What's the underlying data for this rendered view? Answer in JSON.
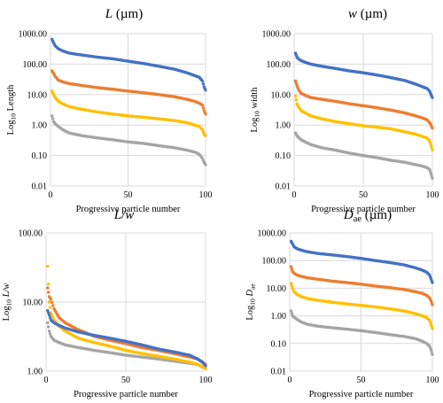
{
  "colors": {
    "series1": "#4472c4",
    "series2": "#ed7d31",
    "series3": "#ffc000",
    "series4": "#a5a5a5",
    "grid": "#d9d9d9",
    "text": "#000000"
  },
  "chart_data": [
    {
      "id": "length",
      "type": "scatter",
      "title_main": "L",
      "title_unit": " (µm)",
      "xlabel": "Progressive particle number",
      "ylabel_prefix": "Log",
      "ylabel_sub": "10",
      "ylabel_main": " Length",
      "yscale": "log",
      "ylim": [
        0.01,
        1000
      ],
      "yticks": [
        "0.01",
        "0.10",
        "1.00",
        "10.00",
        "100.00",
        "1000.00"
      ],
      "xlim": [
        0,
        100
      ],
      "xticks": [
        "0",
        "50",
        "100"
      ],
      "grid": true,
      "series": [
        {
          "x": [
            1,
            2,
            3,
            5,
            8,
            12,
            20,
            30,
            40,
            50,
            60,
            70,
            80,
            88,
            93,
            96,
            97,
            98,
            99,
            100
          ],
          "y": [
            650,
            500,
            400,
            320,
            270,
            230,
            200,
            170,
            150,
            125,
            105,
            85,
            68,
            52,
            42,
            37,
            32,
            28,
            18,
            14
          ]
        },
        {
          "x": [
            1,
            2,
            3,
            5,
            8,
            12,
            20,
            30,
            40,
            50,
            60,
            70,
            80,
            88,
            93,
            96,
            98,
            99,
            100
          ],
          "y": [
            60,
            50,
            40,
            30,
            26,
            23,
            20,
            17,
            15,
            13,
            11.5,
            10,
            8.5,
            7,
            6,
            5.2,
            4.5,
            3,
            2.3
          ]
        },
        {
          "x": [
            1,
            2,
            3,
            5,
            8,
            12,
            20,
            30,
            40,
            50,
            60,
            70,
            80,
            88,
            93,
            96,
            98,
            99,
            100
          ],
          "y": [
            13,
            10,
            8,
            6,
            5,
            4,
            3.3,
            2.7,
            2.3,
            2.0,
            1.8,
            1.6,
            1.4,
            1.2,
            1.0,
            0.9,
            0.7,
            0.5,
            0.45
          ]
        },
        {
          "x": [
            1,
            2,
            3,
            5,
            8,
            12,
            20,
            30,
            40,
            50,
            60,
            70,
            80,
            88,
            93,
            96,
            98,
            99,
            100
          ],
          "y": [
            2.0,
            1.3,
            1.1,
            0.9,
            0.7,
            0.55,
            0.45,
            0.38,
            0.33,
            0.28,
            0.25,
            0.21,
            0.18,
            0.15,
            0.13,
            0.11,
            0.08,
            0.06,
            0.05
          ]
        }
      ]
    },
    {
      "id": "width",
      "type": "scatter",
      "title_main": "w",
      "title_unit": " (µm)",
      "xlabel": "Progressive particle number",
      "ylabel_prefix": "Log",
      "ylabel_sub": "10",
      "ylabel_main": " width",
      "yscale": "log",
      "ylim": [
        0.01,
        1000
      ],
      "yticks": [
        "0.01",
        "0.10",
        "1.00",
        "10.00",
        "100.00",
        "1000.00"
      ],
      "xlim": [
        0,
        100
      ],
      "xticks": [
        "0",
        "50",
        "100"
      ],
      "grid": true,
      "series": [
        {
          "x": [
            1,
            2,
            3,
            5,
            8,
            12,
            20,
            30,
            40,
            50,
            60,
            70,
            80,
            88,
            93,
            96,
            98,
            99,
            100
          ],
          "y": [
            230,
            170,
            150,
            130,
            115,
            100,
            85,
            72,
            60,
            52,
            44,
            36,
            29,
            22,
            18,
            16,
            13,
            10,
            8
          ]
        },
        {
          "x": [
            1,
            2,
            3,
            5,
            8,
            12,
            20,
            30,
            40,
            50,
            60,
            70,
            80,
            88,
            93,
            96,
            98,
            99,
            100
          ],
          "y": [
            28,
            20,
            15,
            11,
            9.5,
            8,
            7,
            6,
            5,
            4.3,
            3.7,
            3.1,
            2.5,
            2.0,
            1.7,
            1.5,
            1.2,
            1.0,
            0.8
          ]
        },
        {
          "x": [
            1,
            2,
            3,
            5,
            8,
            12,
            20,
            30,
            40,
            50,
            60,
            70,
            80,
            88,
            93,
            96,
            98,
            99,
            100
          ],
          "y": [
            9,
            5,
            4,
            3,
            2.5,
            2.0,
            1.6,
            1.3,
            1.1,
            0.95,
            0.85,
            0.75,
            0.6,
            0.5,
            0.42,
            0.38,
            0.3,
            0.22,
            0.15
          ]
        },
        {
          "x": [
            1,
            2,
            3,
            5,
            8,
            12,
            20,
            30,
            40,
            50,
            60,
            70,
            80,
            88,
            93,
            96,
            98,
            99,
            100
          ],
          "y": [
            0.55,
            0.45,
            0.4,
            0.33,
            0.28,
            0.23,
            0.18,
            0.15,
            0.12,
            0.1,
            0.085,
            0.07,
            0.06,
            0.05,
            0.045,
            0.04,
            0.035,
            0.025,
            0.018
          ]
        }
      ]
    },
    {
      "id": "aspect",
      "type": "scatter",
      "title_main": "L/w",
      "title_unit": "",
      "xlabel": "Progressive particle number",
      "ylabel_prefix": "Log",
      "ylabel_sub": "10",
      "ylabel_main": " L/w",
      "yscale": "log",
      "ylim": [
        1,
        100
      ],
      "yticks": [
        "1.00",
        "10.00",
        "100.00"
      ],
      "xlim": [
        0,
        100
      ],
      "xticks": [
        "0",
        "50",
        "100"
      ],
      "grid": true,
      "series": [
        {
          "x": [
            1,
            2,
            3,
            5,
            8,
            12,
            20,
            30,
            40,
            50,
            60,
            70,
            80,
            90,
            95,
            98,
            100
          ],
          "y": [
            7.5,
            6.5,
            5.5,
            5.0,
            4.6,
            4.2,
            3.7,
            3.3,
            3.0,
            2.7,
            2.4,
            2.1,
            1.9,
            1.7,
            1.5,
            1.35,
            1.2
          ]
        },
        {
          "x": [
            1,
            2,
            3,
            5,
            8,
            12,
            20,
            30,
            40,
            50,
            60,
            70,
            80,
            90,
            95,
            98,
            100
          ],
          "y": [
            16,
            12,
            11,
            8,
            6,
            5,
            4,
            3.2,
            2.8,
            2.5,
            2.2,
            2.0,
            1.8,
            1.6,
            1.5,
            1.35,
            1.25
          ]
        },
        {
          "x": [
            1,
            2,
            3,
            5,
            8,
            12,
            20,
            30,
            40,
            50,
            60,
            70,
            80,
            90,
            95,
            98,
            100
          ],
          "y": [
            33,
            10,
            7,
            5.5,
            4.5,
            3.8,
            3.0,
            2.6,
            2.3,
            2.0,
            1.8,
            1.65,
            1.5,
            1.35,
            1.25,
            1.15,
            1.08
          ]
        },
        {
          "x": [
            1,
            2,
            3,
            5,
            8,
            12,
            20,
            30,
            40,
            50,
            60,
            70,
            80,
            90,
            95,
            98,
            100
          ],
          "y": [
            5,
            3.8,
            3.2,
            2.8,
            2.6,
            2.4,
            2.2,
            2.0,
            1.85,
            1.7,
            1.6,
            1.5,
            1.4,
            1.3,
            1.25,
            1.15,
            1.1
          ]
        }
      ]
    },
    {
      "id": "dae",
      "type": "scatter",
      "title_main": "D",
      "title_sub": "ae",
      "title_unit": " (µm)",
      "xlabel": "Progressive particle number",
      "ylabel_prefix": "Log",
      "ylabel_sub": "10",
      "ylabel_main": " D",
      "ylabel_main_sub": "ae",
      "yscale": "log",
      "ylim": [
        0.01,
        1000
      ],
      "yticks": [
        "0.01",
        "0.10",
        "1.00",
        "10.00",
        "100.00",
        "1000.00"
      ],
      "xlim": [
        0,
        100
      ],
      "xticks": [
        "0",
        "50",
        "100"
      ],
      "grid": true,
      "series": [
        {
          "x": [
            1,
            2,
            3,
            5,
            8,
            12,
            20,
            30,
            40,
            50,
            60,
            70,
            80,
            88,
            93,
            96,
            98,
            99,
            100
          ],
          "y": [
            500,
            400,
            320,
            270,
            240,
            210,
            180,
            160,
            140,
            120,
            100,
            85,
            70,
            55,
            45,
            38,
            30,
            22,
            16
          ]
        },
        {
          "x": [
            1,
            2,
            3,
            5,
            8,
            12,
            20,
            30,
            40,
            50,
            60,
            70,
            80,
            88,
            93,
            96,
            98,
            99,
            100
          ],
          "y": [
            60,
            40,
            35,
            30,
            27,
            24,
            21,
            18,
            16,
            14,
            12,
            10.5,
            9,
            7.5,
            6.5,
            5.5,
            4.5,
            3.5,
            2.5
          ]
        },
        {
          "x": [
            1,
            2,
            3,
            5,
            8,
            12,
            20,
            30,
            40,
            50,
            60,
            70,
            80,
            88,
            93,
            96,
            98,
            99,
            100
          ],
          "y": [
            15,
            10,
            7.5,
            6,
            5,
            4.3,
            3.6,
            3.1,
            2.7,
            2.4,
            2.1,
            1.8,
            1.5,
            1.2,
            1.0,
            0.85,
            0.7,
            0.5,
            0.35
          ]
        },
        {
          "x": [
            1,
            2,
            3,
            5,
            8,
            12,
            20,
            30,
            40,
            50,
            60,
            70,
            80,
            88,
            93,
            96,
            98,
            99,
            100
          ],
          "y": [
            1.5,
            1.0,
            0.9,
            0.75,
            0.6,
            0.5,
            0.42,
            0.37,
            0.33,
            0.29,
            0.25,
            0.21,
            0.18,
            0.15,
            0.12,
            0.1,
            0.08,
            0.06,
            0.04
          ]
        }
      ]
    }
  ]
}
